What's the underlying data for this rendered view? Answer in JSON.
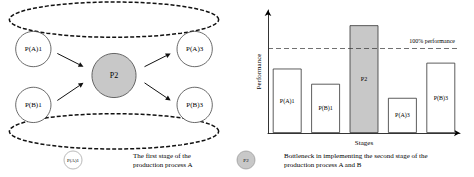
{
  "chart_data": {
    "type": "bar",
    "categories": [
      "P(A)1",
      "P(B)1",
      "P2",
      "P(A)3",
      "P(B)3"
    ],
    "values": [
      55,
      42,
      92,
      30,
      60
    ],
    "colors": [
      "#ffffff",
      "#ffffff",
      "#c8c8c8",
      "#ffffff",
      "#ffffff"
    ],
    "xlabel": "Stages",
    "ylabel": "Performance",
    "ylim": [
      0,
      105
    ],
    "grid": false,
    "tick_labels": false,
    "annotations": [
      {
        "text": "100% performance",
        "y": 72
      },
      {
        "label": "P(A)1",
        "text": "The first stage of the\nproduction process A"
      },
      {
        "label": "P2",
        "text": "Bottleneck in implementing the second stage of the\nproduction process A and B"
      }
    ]
  }
}
